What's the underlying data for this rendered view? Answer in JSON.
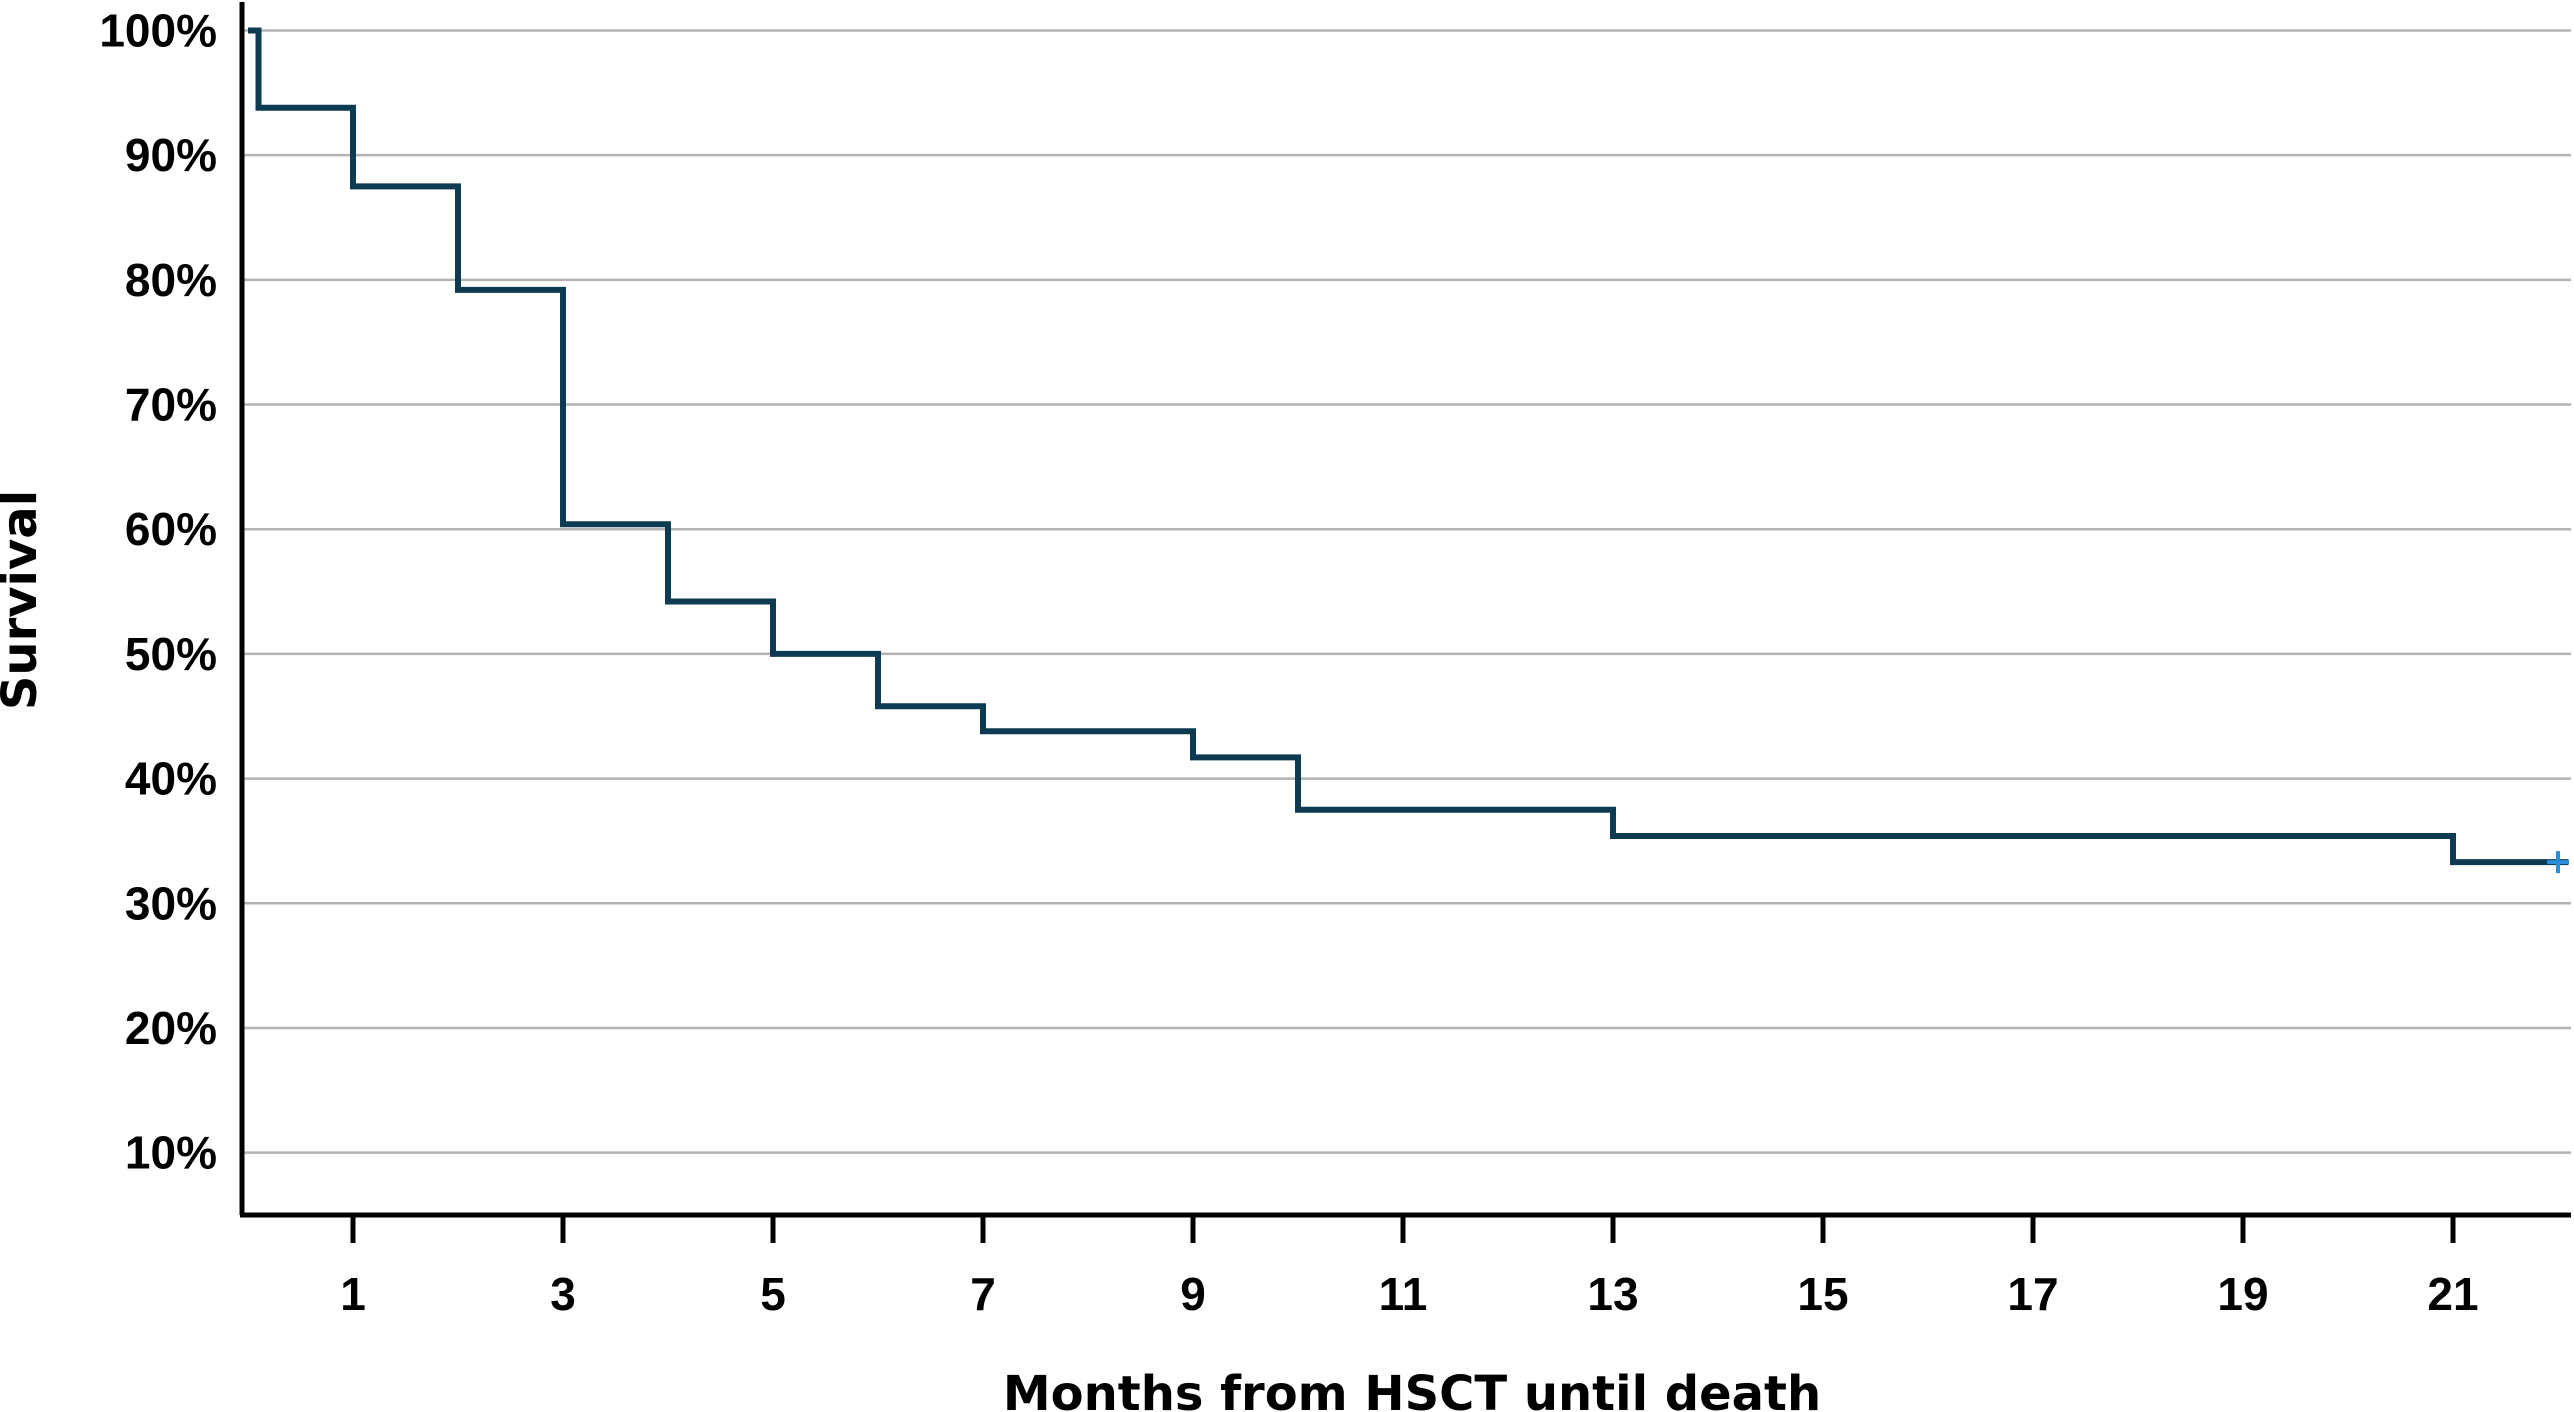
{
  "chart_data": {
    "type": "line",
    "subtype": "kaplan-meier-step",
    "title": "",
    "xlabel": "Months from HSCT until death",
    "ylabel": "Survival",
    "xlim": [
      0,
      22.2
    ],
    "ylim": [
      5,
      101
    ],
    "grid": true,
    "x_ticks": [
      1,
      3,
      5,
      7,
      9,
      11,
      13,
      15,
      17,
      19,
      21
    ],
    "x_tick_labels": [
      "1",
      "3",
      "5",
      "7",
      "9",
      "11",
      "13",
      "15",
      "17",
      "19",
      "21"
    ],
    "y_ticks": [
      10,
      20,
      30,
      40,
      50,
      60,
      70,
      80,
      90,
      100
    ],
    "y_tick_labels": [
      "10%",
      "20%",
      "30%",
      "40%",
      "50%",
      "60%",
      "70%",
      "80%",
      "90%",
      "100%"
    ],
    "line_color": "#0d3b52",
    "censor_color": "#2a8fd6",
    "series": [
      {
        "name": "Survival",
        "x": [
          0.1,
          1,
          2,
          3,
          4,
          5,
          6,
          7,
          9,
          10,
          13,
          21
        ],
        "y": [
          93.8,
          87.5,
          79.2,
          60.4,
          54.2,
          50.0,
          45.8,
          43.8,
          41.7,
          37.5,
          35.4,
          33.3
        ],
        "start": [
          0,
          100
        ],
        "end_x": 22.1
      }
    ],
    "censored": [
      {
        "x": 22.0,
        "y": 33.3
      }
    ]
  }
}
